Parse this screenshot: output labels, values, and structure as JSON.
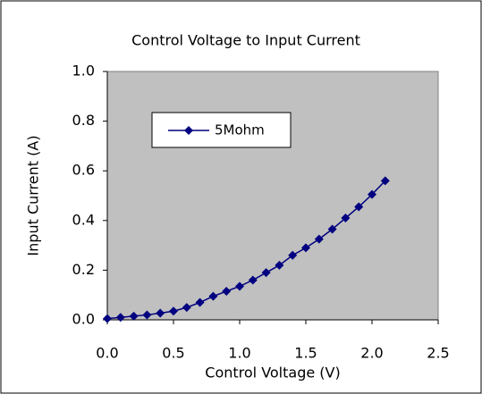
{
  "chart_data": {
    "type": "line",
    "title": "Control Voltage to Input Current",
    "xlabel": "Control Voltage (V)",
    "ylabel": "Input Current (A)",
    "x": [
      0,
      0.1,
      0.2,
      0.3,
      0.4,
      0.5,
      0.6,
      0.7,
      0.8,
      0.9,
      1.0,
      1.1,
      1.2,
      1.3,
      1.4,
      1.5,
      1.6,
      1.7,
      1.8,
      1.9,
      2.0,
      2.1
    ],
    "series": [
      {
        "name": "5Mohm",
        "color": "#000080",
        "values": [
          0.005,
          0.01,
          0.015,
          0.02,
          0.027,
          0.035,
          0.05,
          0.07,
          0.095,
          0.115,
          0.135,
          0.16,
          0.19,
          0.22,
          0.26,
          0.29,
          0.325,
          0.365,
          0.41,
          0.455,
          0.505,
          0.56
        ]
      }
    ],
    "xlim": [
      0,
      2.5
    ],
    "xticks": [
      {
        "value": 0,
        "label": "0.0"
      },
      0.5,
      {
        "value": 1,
        "label": "1.0"
      },
      1.5,
      {
        "value": 2,
        "label": "2.0"
      },
      2.5
    ],
    "ylim": [
      0,
      1
    ],
    "yticks": [
      {
        "value": 0,
        "label": "0.0"
      },
      0.2,
      0.4,
      0.6,
      0.8,
      {
        "value": 1,
        "label": "1.0"
      }
    ],
    "grid": false,
    "legend": "upper left",
    "plot_background": "#c0c0c0"
  }
}
